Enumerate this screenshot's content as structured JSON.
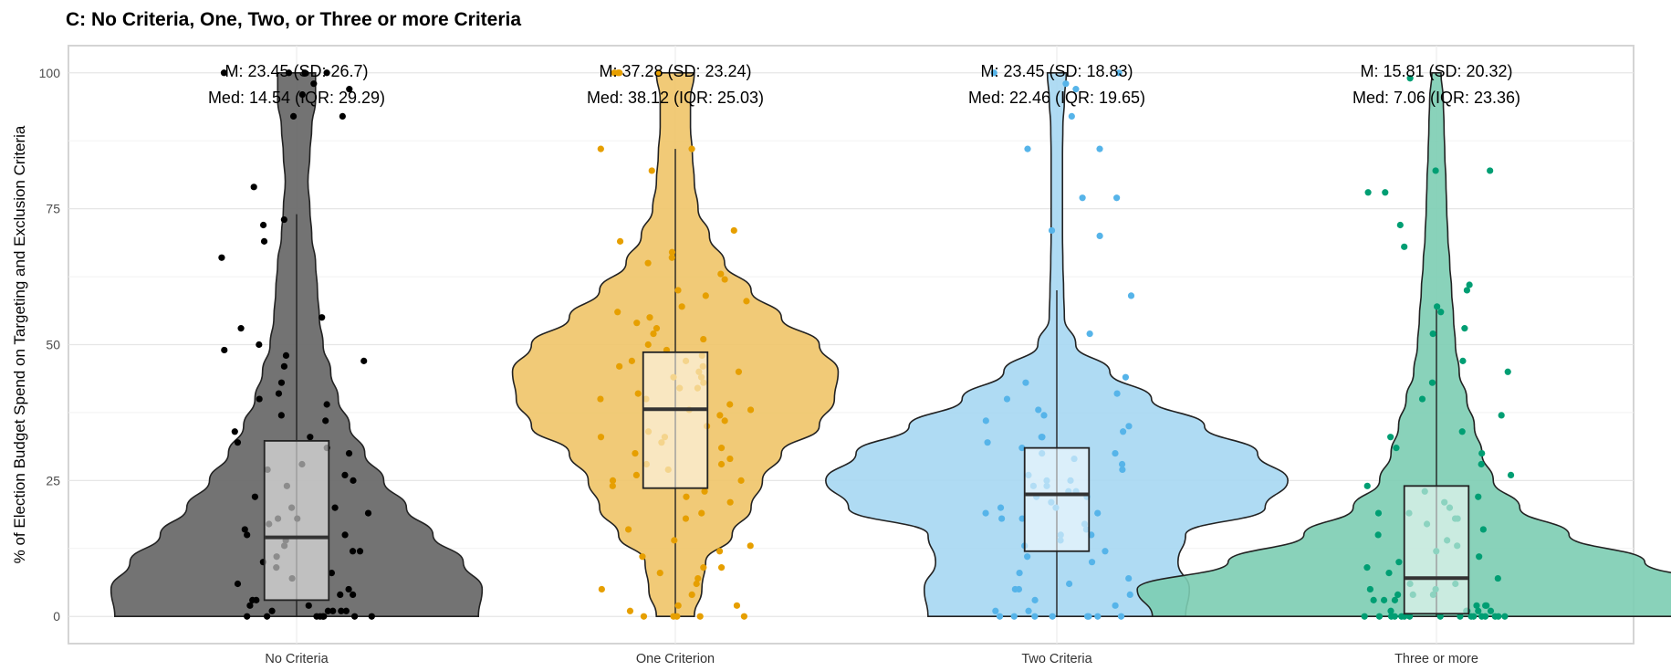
{
  "title": "C: No Criteria, One, Two, or Three or more Criteria",
  "chart_data": {
    "type": "violin",
    "title": "C: No Criteria, One, Two, or Three or more Criteria",
    "xlabel": "",
    "ylabel": "% of Election Budget Spend on Targeting and Exclusion Criteria",
    "ylim": [
      -5,
      105
    ],
    "yticks": [
      0,
      25,
      50,
      75,
      100
    ],
    "grid": true,
    "categories": [
      "No Criteria",
      "One Criterion",
      "Two Criteria",
      "Three or more"
    ],
    "colors": [
      "#6b6b6b",
      "#f0c468",
      "#a6d7f2",
      "#7ccdb3"
    ],
    "point_colors": [
      "#000000",
      "#e69f00",
      "#56b4e9",
      "#009e73"
    ],
    "stats": [
      {
        "mean": 23.45,
        "sd": 26.7,
        "median": 14.54,
        "iqr": 29.29,
        "q1": 3.0,
        "q3": 32.3,
        "whisker_low": 0,
        "whisker_high": 74,
        "label_mean": "M: 23.45 (SD: 26.7)",
        "label_median": "Med: 14.54 (IQR: 29.29)"
      },
      {
        "mean": 37.28,
        "sd": 23.24,
        "median": 38.12,
        "iqr": 25.03,
        "q1": 23.6,
        "q3": 48.6,
        "whisker_low": 0,
        "whisker_high": 86,
        "label_mean": "M: 37.28 (SD: 23.24)",
        "label_median": "Med: 38.12 (IQR: 25.03)"
      },
      {
        "mean": 23.45,
        "sd": 18.83,
        "median": 22.46,
        "iqr": 19.65,
        "q1": 12.0,
        "q3": 31.0,
        "whisker_low": 0,
        "whisker_high": 60,
        "label_mean": "M: 23.45 (SD: 18.83)",
        "label_median": "Med: 22.46 (IQR: 19.65)"
      },
      {
        "mean": 15.81,
        "sd": 20.32,
        "median": 7.06,
        "iqr": 23.36,
        "q1": 0.5,
        "q3": 24.0,
        "whisker_low": 0,
        "whisker_high": 57,
        "label_mean": "M: 15.81 (SD: 20.32)",
        "label_median": "Med: 7.06 (IQR: 23.36)"
      }
    ],
    "violin_profiles": [
      {
        "y": [
          0,
          5,
          10,
          15,
          20,
          25,
          30,
          35,
          40,
          45,
          50,
          55,
          60,
          65,
          70,
          75,
          80,
          85,
          90,
          95,
          100
        ],
        "halfwidth": [
          0.48,
          0.49,
          0.44,
          0.36,
          0.29,
          0.23,
          0.18,
          0.14,
          0.11,
          0.09,
          0.07,
          0.06,
          0.055,
          0.05,
          0.04,
          0.035,
          0.03,
          0.035,
          0.04,
          0.05,
          0.05
        ]
      },
      {
        "y": [
          0,
          5,
          10,
          15,
          20,
          25,
          30,
          35,
          40,
          45,
          50,
          55,
          60,
          65,
          70,
          75,
          80,
          85,
          90,
          95,
          100
        ],
        "halfwidth": [
          0.05,
          0.07,
          0.08,
          0.15,
          0.2,
          0.23,
          0.28,
          0.38,
          0.42,
          0.43,
          0.38,
          0.28,
          0.2,
          0.13,
          0.09,
          0.06,
          0.05,
          0.045,
          0.04,
          0.04,
          0.05
        ]
      },
      {
        "y": [
          0,
          5,
          10,
          15,
          20,
          25,
          30,
          35,
          40,
          45,
          50,
          55,
          60,
          65,
          70,
          75,
          80,
          85,
          90,
          95,
          100
        ],
        "halfwidth": [
          0.34,
          0.35,
          0.32,
          0.34,
          0.55,
          0.61,
          0.53,
          0.39,
          0.25,
          0.14,
          0.05,
          0.02,
          0.018,
          0.016,
          0.015,
          0.015,
          0.015,
          0.015,
          0.016,
          0.02,
          0.025
        ]
      },
      {
        "y": [
          0,
          5,
          10,
          15,
          20,
          25,
          30,
          35,
          40,
          45,
          50,
          55,
          60,
          65,
          70,
          75,
          80,
          85,
          90,
          95,
          100
        ],
        "halfwidth": [
          0.75,
          0.79,
          0.55,
          0.35,
          0.22,
          0.15,
          0.12,
          0.1,
          0.08,
          0.06,
          0.05,
          0.045,
          0.04,
          0.035,
          0.03,
          0.027,
          0.025,
          0.022,
          0.02,
          0.018,
          0.012
        ]
      }
    ],
    "points": [
      [
        0,
        0,
        0,
        0,
        0,
        0,
        0,
        0,
        1,
        1,
        1,
        1,
        1,
        2,
        2,
        3,
        3,
        4,
        4,
        5,
        6,
        7,
        8,
        9,
        10,
        11,
        12,
        12,
        13,
        14,
        15,
        15,
        16,
        17,
        18,
        18,
        19,
        20,
        20,
        22,
        24,
        25,
        26,
        27,
        28,
        30,
        31,
        32,
        33,
        34,
        36,
        37,
        39,
        40,
        41,
        43,
        46,
        47,
        48,
        49,
        50,
        53,
        55,
        66,
        69,
        72,
        73,
        79,
        92,
        92,
        96,
        97,
        98,
        100,
        100,
        100,
        100
      ],
      [
        0,
        0,
        0,
        0,
        0,
        1,
        2,
        2,
        4,
        5,
        6,
        7,
        8,
        9,
        9,
        11,
        12,
        13,
        14,
        16,
        18,
        19,
        21,
        22,
        23,
        24,
        25,
        25,
        26,
        27,
        28,
        28,
        29,
        30,
        31,
        32,
        33,
        33,
        34,
        35,
        36,
        37,
        38,
        38,
        39,
        40,
        40,
        41,
        42,
        42,
        43,
        44,
        44,
        45,
        45,
        46,
        46,
        47,
        47,
        48,
        49,
        50,
        51,
        52,
        53,
        54,
        55,
        56,
        57,
        58,
        59,
        60,
        62,
        63,
        65,
        66,
        67,
        69,
        71,
        82,
        86,
        86,
        100,
        100,
        100,
        100
      ],
      [
        0,
        0,
        0,
        0,
        0,
        0,
        0,
        0,
        1,
        1,
        2,
        3,
        4,
        5,
        5,
        6,
        7,
        8,
        10,
        11,
        12,
        13,
        14,
        15,
        15,
        16,
        17,
        18,
        18,
        19,
        19,
        20,
        20,
        21,
        22,
        22,
        23,
        23,
        24,
        24,
        25,
        25,
        26,
        27,
        28,
        29,
        30,
        30,
        31,
        32,
        33,
        33,
        34,
        35,
        36,
        37,
        38,
        40,
        41,
        43,
        44,
        52,
        59,
        70,
        71,
        77,
        77,
        86,
        86,
        92,
        97,
        98,
        100,
        100
      ],
      [
        0,
        0,
        0,
        0,
        0,
        0,
        0,
        0,
        0,
        0,
        0,
        0,
        0,
        0,
        0,
        0,
        1,
        1,
        1,
        1,
        1,
        2,
        2,
        2,
        3,
        3,
        3,
        4,
        4,
        4,
        5,
        5,
        6,
        6,
        7,
        8,
        9,
        10,
        11,
        12,
        13,
        14,
        15,
        16,
        17,
        18,
        18,
        19,
        19,
        20,
        21,
        22,
        23,
        24,
        26,
        28,
        30,
        31,
        33,
        34,
        37,
        40,
        43,
        45,
        47,
        52,
        53,
        56,
        57,
        60,
        61,
        68,
        72,
        78,
        78,
        82,
        82,
        99
      ]
    ]
  }
}
